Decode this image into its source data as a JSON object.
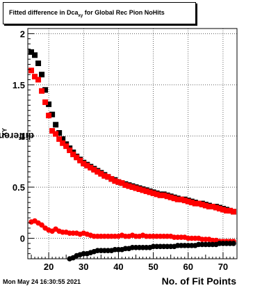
{
  "title": {
    "prefix": "Fitted difference in Dca",
    "sub": "xy",
    "suffix": " for Global Rec Pion NoHits"
  },
  "stamp": "Mon May 24 16:30:55 2021",
  "chart_data": {
    "type": "scatter",
    "xlabel": "No. of Fit Points",
    "ylabel": {
      "main": "difference in Dca",
      "sub": "XY"
    },
    "xlim": [
      14,
      74
    ],
    "ylim": [
      -0.2,
      2.05
    ],
    "x_ticks": [
      20,
      30,
      40,
      50,
      60,
      70
    ],
    "y_ticks": [
      0,
      0.5,
      1,
      1.5,
      2
    ],
    "y_tick_labels": [
      "0",
      "0.5",
      "1",
      "1.5",
      "2"
    ],
    "grid": true,
    "series": [
      {
        "color": "#000000",
        "marker": "square",
        "x": [
          15,
          16,
          17,
          18,
          19,
          20,
          21,
          22,
          23,
          24,
          25,
          26,
          27,
          28,
          29,
          30,
          31,
          32,
          33,
          34,
          35,
          36,
          37,
          38,
          39,
          40,
          41,
          42,
          43,
          44,
          45,
          46,
          47,
          48,
          49,
          50,
          51,
          52,
          53,
          54,
          55,
          56,
          57,
          58,
          59,
          60,
          61,
          62,
          63,
          64,
          65,
          66,
          67,
          68,
          69,
          70,
          71,
          72,
          73
        ],
        "y": [
          1.82,
          1.79,
          1.71,
          1.6,
          1.45,
          1.31,
          1.21,
          1.11,
          1.03,
          0.97,
          0.92,
          0.88,
          0.84,
          0.8,
          0.77,
          0.74,
          0.72,
          0.7,
          0.68,
          0.66,
          0.64,
          0.62,
          0.6,
          0.58,
          0.57,
          0.55,
          0.54,
          0.53,
          0.52,
          0.51,
          0.5,
          0.49,
          0.48,
          0.47,
          0.46,
          0.45,
          0.44,
          0.43,
          0.43,
          0.42,
          0.41,
          0.4,
          0.39,
          0.38,
          0.38,
          0.37,
          0.36,
          0.35,
          0.34,
          0.34,
          0.33,
          0.32,
          0.31,
          0.31,
          0.3,
          0.29,
          0.28,
          0.27,
          0.26
        ]
      },
      {
        "color": "#ff0000",
        "marker": "square",
        "x": [
          15,
          16,
          17,
          18,
          19,
          20,
          21,
          22,
          23,
          24,
          25,
          26,
          27,
          28,
          29,
          30,
          31,
          32,
          33,
          34,
          35,
          36,
          37,
          38,
          39,
          40,
          41,
          42,
          43,
          44,
          45,
          46,
          47,
          48,
          49,
          50,
          51,
          52,
          53,
          54,
          55,
          56,
          57,
          58,
          59,
          60,
          61,
          62,
          63,
          64,
          65,
          66,
          67,
          68,
          69,
          70,
          71,
          72,
          73
        ],
        "y": [
          1.64,
          1.58,
          1.55,
          1.44,
          1.33,
          1.2,
          1.05,
          1.02,
          0.97,
          0.93,
          0.9,
          0.86,
          0.82,
          0.79,
          0.76,
          0.73,
          0.71,
          0.69,
          0.67,
          0.65,
          0.63,
          0.61,
          0.6,
          0.58,
          0.56,
          0.55,
          0.54,
          0.52,
          0.51,
          0.5,
          0.49,
          0.48,
          0.47,
          0.46,
          0.45,
          0.44,
          0.43,
          0.42,
          0.42,
          0.41,
          0.4,
          0.39,
          0.38,
          0.38,
          0.37,
          0.36,
          0.35,
          0.34,
          0.34,
          0.33,
          0.32,
          0.31,
          0.31,
          0.3,
          0.29,
          0.28,
          0.27,
          0.27,
          0.26
        ]
      },
      {
        "color": "#ff0000",
        "marker": "circle",
        "x": [
          15,
          16,
          17,
          18,
          19,
          20,
          21,
          22,
          23,
          24,
          25,
          26,
          27,
          28,
          29,
          30,
          31,
          32,
          33,
          34,
          35,
          36,
          37,
          38,
          39,
          40,
          41,
          42,
          43,
          44,
          45,
          46,
          47,
          48,
          49,
          50,
          51,
          52,
          53,
          54,
          55,
          56,
          57,
          58,
          59,
          60,
          61,
          62,
          63,
          64,
          65,
          66,
          67,
          68,
          69,
          70,
          71,
          72,
          73
        ],
        "y": [
          0.16,
          0.17,
          0.15,
          0.13,
          0.1,
          0.08,
          0.07,
          0.09,
          0.07,
          0.06,
          0.06,
          0.05,
          0.05,
          0.05,
          0.04,
          0.05,
          0.04,
          0.03,
          0.02,
          0.02,
          0.02,
          0.02,
          0.02,
          0.02,
          0.02,
          0.02,
          0.03,
          0.02,
          0.02,
          0.03,
          0.02,
          0.02,
          0.03,
          0.02,
          0.02,
          0.02,
          0.02,
          0.02,
          0.02,
          0.02,
          0.02,
          0.01,
          0.01,
          0.01,
          0.01,
          0.0,
          0.0,
          0.0,
          0.0,
          -0.01,
          -0.01,
          -0.01,
          -0.02,
          -0.02,
          -0.03,
          -0.03,
          -0.03,
          -0.03,
          -0.03
        ]
      },
      {
        "color": "#000000",
        "marker": "circle",
        "x": [
          26,
          27,
          28,
          29,
          30,
          31,
          32,
          33,
          34,
          35,
          36,
          37,
          38,
          39,
          40,
          41,
          42,
          43,
          44,
          45,
          46,
          47,
          48,
          49,
          50,
          51,
          52,
          53,
          54,
          55,
          56,
          57,
          58,
          59,
          60,
          61,
          62,
          63,
          64,
          65,
          66,
          67,
          68,
          69,
          70,
          71,
          72,
          73
        ],
        "y": [
          -0.2,
          -0.19,
          -0.17,
          -0.16,
          -0.15,
          -0.15,
          -0.14,
          -0.13,
          -0.12,
          -0.12,
          -0.12,
          -0.12,
          -0.12,
          -0.11,
          -0.11,
          -0.11,
          -0.1,
          -0.1,
          -0.09,
          -0.09,
          -0.09,
          -0.09,
          -0.09,
          -0.09,
          -0.08,
          -0.08,
          -0.08,
          -0.08,
          -0.08,
          -0.08,
          -0.08,
          -0.07,
          -0.07,
          -0.07,
          -0.07,
          -0.07,
          -0.07,
          -0.06,
          -0.06,
          -0.06,
          -0.06,
          -0.06,
          -0.06,
          -0.05,
          -0.05,
          -0.05,
          -0.05,
          -0.05
        ]
      }
    ]
  }
}
